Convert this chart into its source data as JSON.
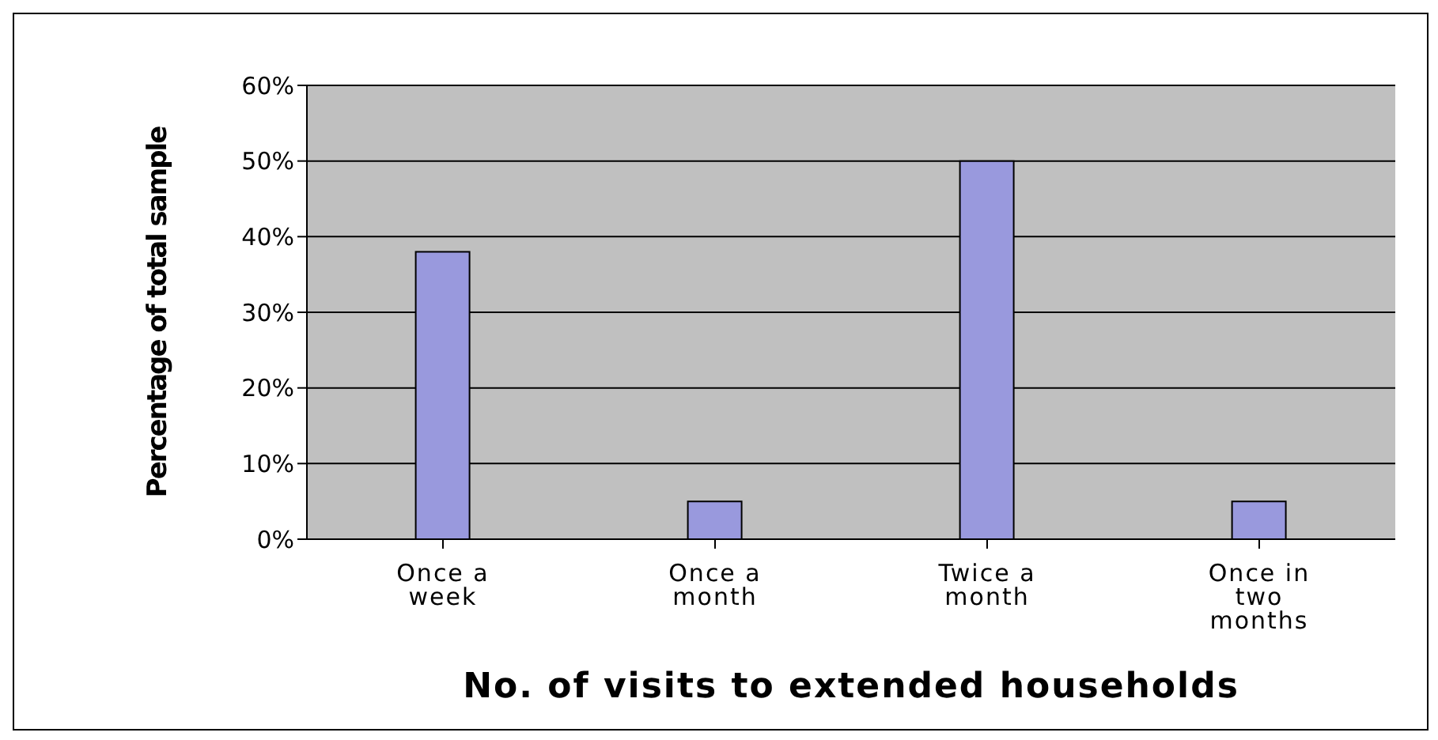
{
  "chart_data": {
    "type": "bar",
    "xlabel": "No. of visits to extended households",
    "ylabel": "Percentage of total sample",
    "categories": [
      "Once a week",
      "Once a month",
      "Twice a month",
      "Once in two months"
    ],
    "values": [
      38,
      5,
      50,
      5
    ],
    "color": "#9999dd",
    "ylim": [
      0,
      60
    ],
    "yticks": [
      {
        "value": 0,
        "label": "0%"
      },
      {
        "value": 10,
        "label": "10%"
      },
      {
        "value": 20,
        "label": "20%"
      },
      {
        "value": 30,
        "label": "30%"
      },
      {
        "value": 40,
        "label": "40%"
      },
      {
        "value": 50,
        "label": "50%"
      },
      {
        "value": 60,
        "label": "60%"
      }
    ],
    "grid": "y"
  }
}
